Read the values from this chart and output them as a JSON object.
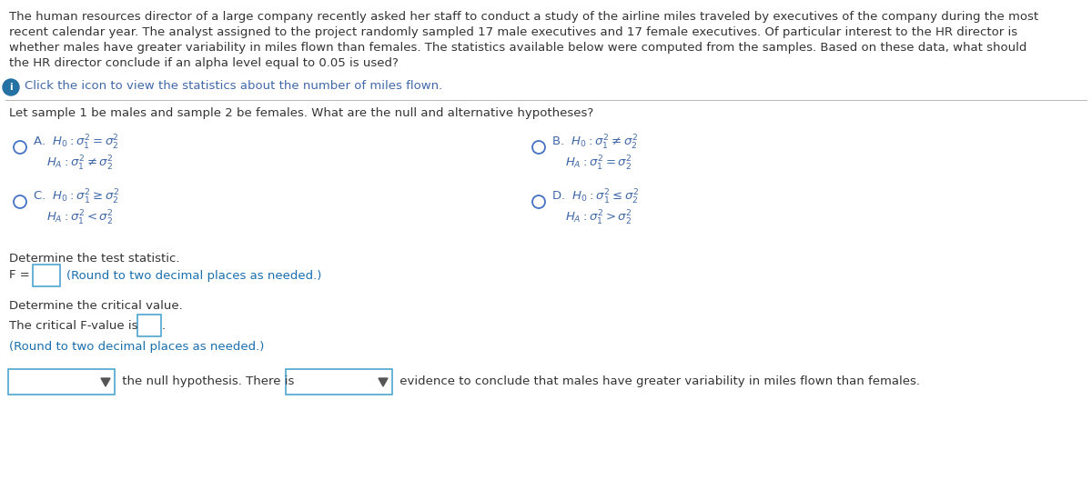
{
  "bg_color": "#ffffff",
  "text_color": "#1a1a2e",
  "dark_text": "#333333",
  "blue_link": "#1a6faf",
  "option_blue": "#4169aa",
  "radio_color": "#4472C4",
  "box_border": "#4da6d0",
  "paragraph": "The human resources director of a large company recently asked her staff to conduct a study of the airline miles traveled by executives of the company during the most\nrecent calendar year. The analyst assigned to the project randomly sampled 17 male executives and 17 female executives. Of particular interest to the HR director is\nwhether males have greater variability in miles flown than females. The statistics available below were computed from the samples. Based on these data, what should\nthe HR director conclude if an alpha level equal to 0.05 is used?",
  "click_text": "Click the icon to view the statistics about the number of miles flown.",
  "question_text": "Let sample 1 be males and sample 2 be females. What are the null and alternative hypotheses?",
  "stat_label": "Determine the test statistic.",
  "f_note": "(Round to two decimal places as needed.)",
  "crit_label": "Determine the critical value.",
  "crit_line": "The critical F-value is",
  "crit_note": "(Round to two decimal places as needed.)",
  "conclusion": " the null hypothesis. There is",
  "conclusion2": " evidence to conclude that males have greater variability in miles flown than females."
}
